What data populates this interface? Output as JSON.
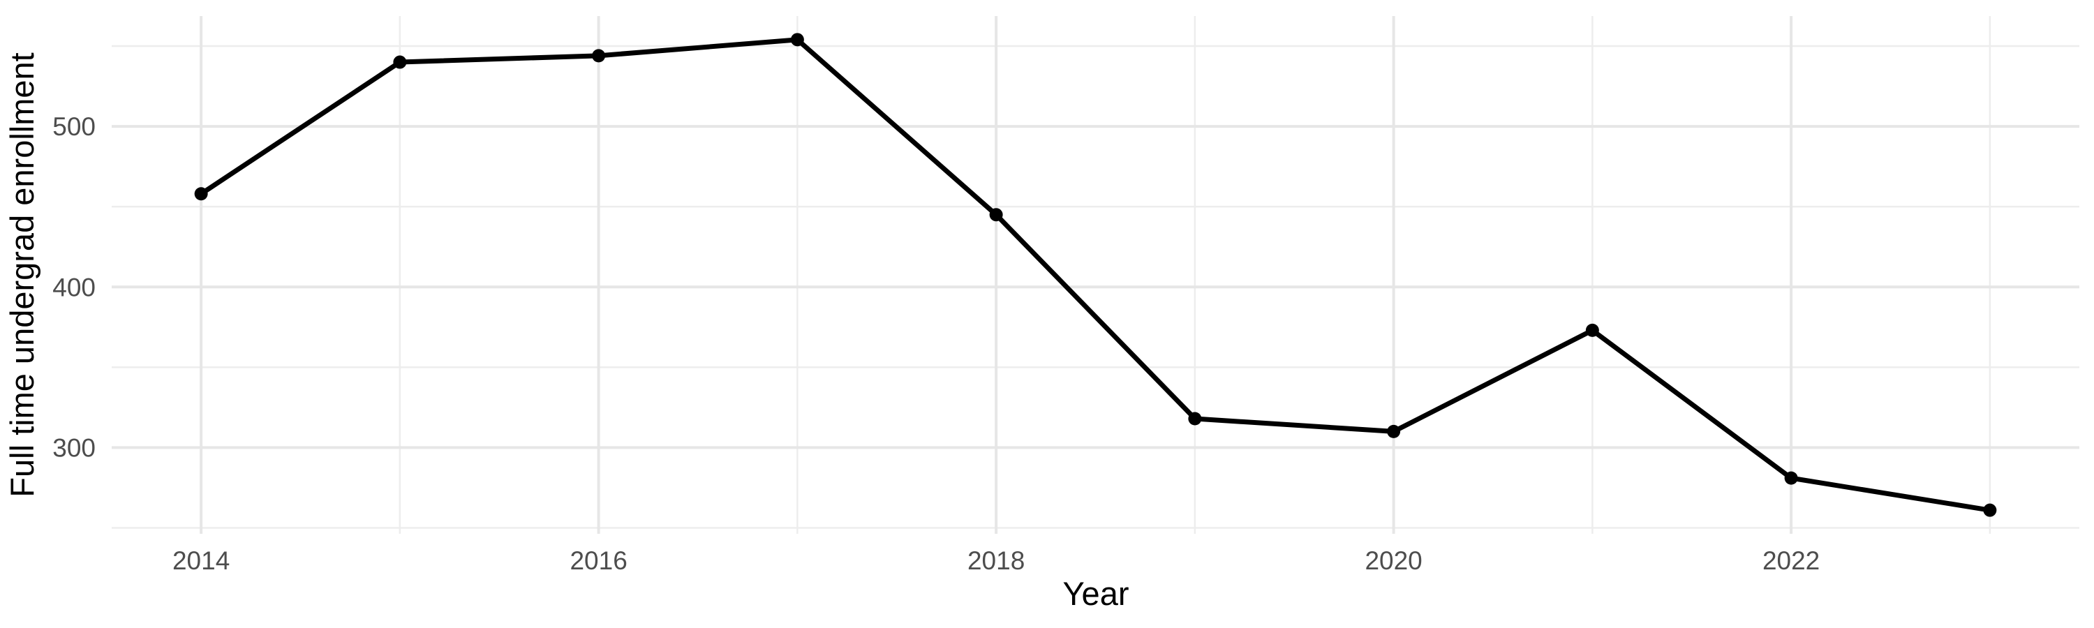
{
  "chart_data": {
    "type": "line",
    "title": "",
    "xlabel": "Year",
    "ylabel": "Full time undergrad enrollment",
    "series": [
      {
        "name": "Full time undergrad enrollment",
        "x": [
          2014,
          2015,
          2016,
          2017,
          2018,
          2019,
          2020,
          2021,
          2022,
          2023
        ],
        "values": [
          458,
          540,
          544,
          554,
          445,
          318,
          310,
          373,
          281,
          261
        ]
      }
    ],
    "xlim": [
      2013.55,
      2023.45
    ],
    "ylim": [
      246.3,
      568.7
    ],
    "x_major_ticks": [
      2014,
      2016,
      2018,
      2020,
      2022
    ],
    "x_minor_gridlines": [
      2015,
      2017,
      2019,
      2021,
      2023
    ],
    "y_major_ticks": [
      300,
      400,
      500
    ],
    "y_minor_gridlines": [
      250,
      350,
      450,
      550
    ],
    "grid": true,
    "legend": "none",
    "point_marker": "circle",
    "colors": {
      "line": "#000000",
      "point": "#000000",
      "grid_major": "#e6e6e6",
      "grid_minor": "#ededed",
      "tick_text": "#4d4d4d",
      "title_text": "#000000",
      "background": "#ffffff"
    }
  }
}
